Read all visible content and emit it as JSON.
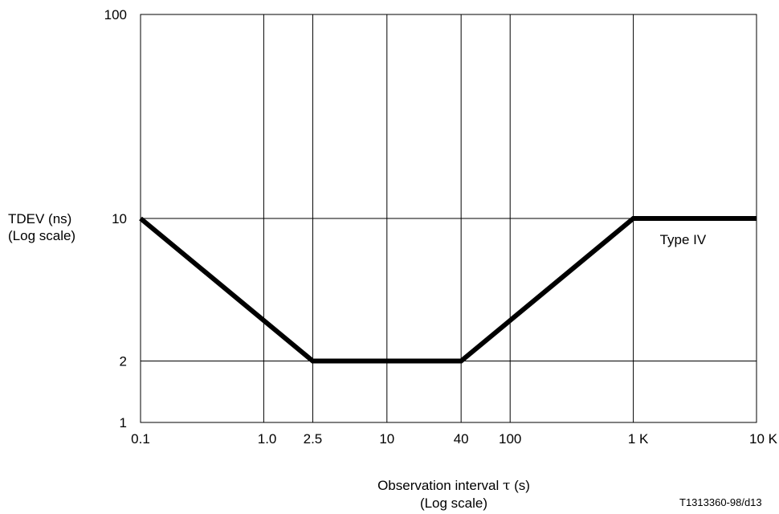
{
  "chart_data": {
    "type": "line",
    "title": "",
    "ylabel": "TDEV (ns)",
    "ylabel_scale": "(Log scale)",
    "xlabel_prefix": "Observation interval ",
    "xlabel_symbol": "τ",
    "xlabel_suffix": " (s)",
    "xlabel_scale": "(Log scale)",
    "x_scale": "log",
    "y_scale": "log",
    "xlim": [
      0.1,
      10000
    ],
    "ylim": [
      1,
      100
    ],
    "x_ticks": [
      {
        "value": 0.1,
        "label": "0.1"
      },
      {
        "value": 1.0,
        "label": "1.0"
      },
      {
        "value": 2.5,
        "label": "2.5"
      },
      {
        "value": 10,
        "label": "10"
      },
      {
        "value": 40,
        "label": "40"
      },
      {
        "value": 100,
        "label": "100"
      },
      {
        "value": 1000,
        "label": "1 K"
      },
      {
        "value": 10000,
        "label": "10 K"
      }
    ],
    "y_ticks": [
      {
        "value": 1,
        "label": "1"
      },
      {
        "value": 2,
        "label": "2"
      },
      {
        "value": 10,
        "label": "10"
      },
      {
        "value": 100,
        "label": "100"
      }
    ],
    "grid": true,
    "series": [
      {
        "name": "Type IV",
        "x": [
          0.1,
          2.5,
          40,
          1000,
          10000
        ],
        "y": [
          10,
          2,
          2,
          10,
          10
        ]
      }
    ]
  },
  "figure_code": "T1313360-98/d13"
}
